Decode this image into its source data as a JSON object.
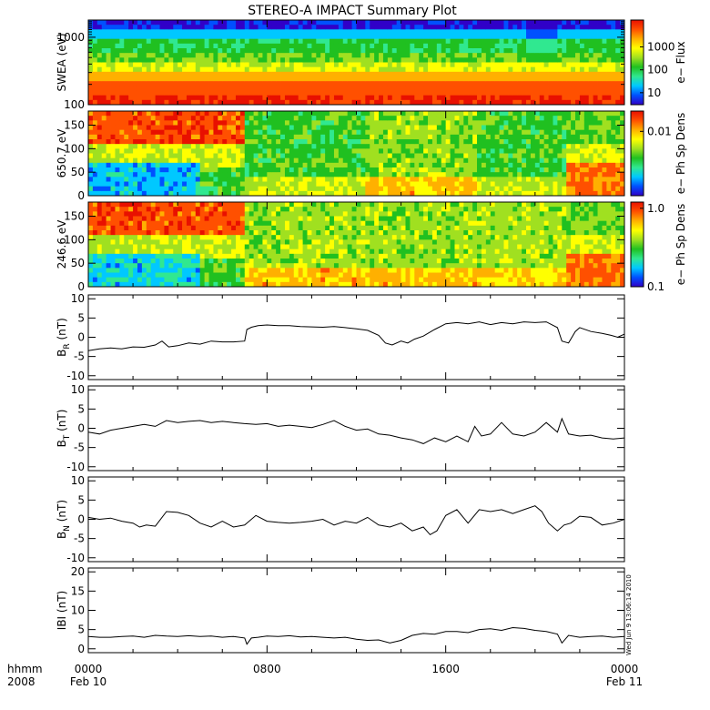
{
  "title": "STEREO-A IMPACT Summary Plot",
  "stamp": "Wed Jun  9 13:06:14 2010",
  "x_axis": {
    "row1_label": "hhmm",
    "row2_label": "2008",
    "ticks": [
      {
        "value": 0,
        "time": "0000",
        "date": "Feb 10"
      },
      {
        "value": 8,
        "time": "0800",
        "date": ""
      },
      {
        "value": 16,
        "time": "1600",
        "date": ""
      },
      {
        "value": 24,
        "time": "0000",
        "date": "Feb 11"
      }
    ],
    "range_hours": [
      0,
      24
    ]
  },
  "colors": {
    "line": "#000000",
    "colormap": [
      "#3000c8",
      "#0050ff",
      "#00c8ff",
      "#30e890",
      "#20c020",
      "#a0e020",
      "#ffff00",
      "#ffb000",
      "#ff5000",
      "#e81000"
    ]
  },
  "chart_data": [
    {
      "type": "heatmap",
      "ylabel": "SWEA (eV)",
      "yscale": "log",
      "ylim": [
        100,
        1800
      ],
      "yticks": [
        "100",
        "1000"
      ],
      "colorbar": {
        "label": "e− Flux",
        "scale": "log",
        "range": [
          3,
          15000
        ],
        "ticks": [
          "10",
          "100",
          "1000"
        ]
      },
      "description_rows": [
        {
          "energy_eV": 1700,
          "level": 0.05
        },
        {
          "energy_eV": 1300,
          "level": 0.2
        },
        {
          "energy_eV": 900,
          "level": 0.4
        },
        {
          "energy_eV": 600,
          "level": 0.5
        },
        {
          "energy_eV": 400,
          "level": 0.62
        },
        {
          "energy_eV": 250,
          "level": 0.75
        },
        {
          "energy_eV": 150,
          "level": 0.87
        },
        {
          "energy_eV": 100,
          "level": 0.95
        }
      ]
    },
    {
      "type": "heatmap",
      "ylabel": "650.7 eV",
      "yaxis_unit": "pitch angle (deg)",
      "ylim": [
        0,
        180
      ],
      "yticks": [
        "0",
        "50",
        "100",
        "150"
      ],
      "colorbar": {
        "label": "e− Ph Sp Dens",
        "scale": "log",
        "ticks": [
          "0.01"
        ]
      },
      "segments_hours": [
        {
          "from": 0,
          "to": 5.0,
          "pattern": "high-at-180"
        },
        {
          "from": 5.0,
          "to": 7.0,
          "pattern": "mid-at-180"
        },
        {
          "from": 7.0,
          "to": 12.5,
          "pattern": "isotropic-green"
        },
        {
          "from": 12.5,
          "to": 17.5,
          "pattern": "isotropic-yellow"
        },
        {
          "from": 17.5,
          "to": 21.5,
          "pattern": "isotropic-green"
        },
        {
          "from": 21.5,
          "to": 24,
          "pattern": "high-at-0"
        }
      ]
    },
    {
      "type": "heatmap",
      "ylabel": "246.6 eV",
      "yaxis_unit": "pitch angle (deg)",
      "ylim": [
        0,
        180
      ],
      "yticks": [
        "0",
        "50",
        "100",
        "150"
      ],
      "colorbar": {
        "label": "e− Ph Sp Dens",
        "scale": "log",
        "range": [
          0.1,
          1.2
        ],
        "ticks": [
          "0.1",
          "1.0"
        ]
      },
      "segments_hours": [
        {
          "from": 0,
          "to": 5.0,
          "pattern": "high-at-180"
        },
        {
          "from": 5.0,
          "to": 7.0,
          "pattern": "mid-at-180"
        },
        {
          "from": 7.0,
          "to": 12.5,
          "pattern": "isotropic-yellow"
        },
        {
          "from": 12.5,
          "to": 17.5,
          "pattern": "isotropic-yellow"
        },
        {
          "from": 17.5,
          "to": 21.5,
          "pattern": "isotropic-green"
        },
        {
          "from": 21.5,
          "to": 24,
          "pattern": "high-at-0"
        }
      ]
    },
    {
      "type": "line",
      "ylabel": "B",
      "ylabel_sub": "R",
      "ylabel_unit": "(nT)",
      "ylim": [
        -11,
        11
      ],
      "yticks": [
        -10,
        -5,
        0,
        5,
        10
      ],
      "x": [
        0,
        0.5,
        1,
        1.5,
        2,
        2.5,
        3,
        3.3,
        3.6,
        4,
        4.5,
        5,
        5.5,
        6,
        6.5,
        7,
        7.1,
        7.3,
        7.6,
        8,
        8.5,
        9,
        9.5,
        10,
        10.5,
        11,
        11.5,
        12,
        12.5,
        13,
        13.3,
        13.6,
        14,
        14.3,
        14.6,
        15,
        15.5,
        16,
        16.5,
        17,
        17.5,
        18,
        18.5,
        19,
        19.5,
        20,
        20.5,
        21,
        21.2,
        21.5,
        21.8,
        22,
        22.5,
        23,
        23.4,
        23.7,
        24
      ],
      "values": [
        -3.5,
        -3,
        -2.8,
        -3,
        -2.5,
        -2.6,
        -2,
        -1,
        -2.5,
        -2.2,
        -1.5,
        -1.8,
        -1,
        -1.2,
        -1.2,
        -1,
        2,
        2.6,
        3,
        3.2,
        3,
        3,
        2.8,
        2.7,
        2.6,
        2.8,
        2.5,
        2.2,
        1.8,
        0.5,
        -1.5,
        -2,
        -1,
        -1.5,
        -0.5,
        0.3,
        2,
        3.5,
        3.8,
        3.5,
        4,
        3.3,
        3.8,
        3.5,
        4,
        3.8,
        4,
        2.5,
        -1,
        -1.5,
        1.5,
        2.5,
        1.5,
        1,
        0.5,
        0,
        0.8
      ]
    },
    {
      "type": "line",
      "ylabel": "B",
      "ylabel_sub": "T",
      "ylabel_unit": "(nT)",
      "ylim": [
        -11,
        11
      ],
      "yticks": [
        -10,
        -5,
        0,
        5,
        10
      ],
      "x": [
        0,
        0.5,
        1,
        1.5,
        2,
        2.5,
        3,
        3.5,
        4,
        4.5,
        5,
        5.5,
        6,
        6.5,
        7,
        7.5,
        8,
        8.5,
        9,
        9.5,
        10,
        10.5,
        11,
        11.5,
        12,
        12.5,
        13,
        13.5,
        14,
        14.5,
        15,
        15.5,
        16,
        16.5,
        17,
        17.3,
        17.6,
        18,
        18.5,
        19,
        19.5,
        20,
        20.5,
        21,
        21.2,
        21.5,
        22,
        22.5,
        23,
        23.5,
        24
      ],
      "values": [
        -1,
        -1.5,
        -0.5,
        0,
        0.5,
        1,
        0.5,
        2,
        1.5,
        1.8,
        2,
        1.5,
        1.8,
        1.5,
        1.2,
        1,
        1.2,
        0.5,
        0.8,
        0.5,
        0.2,
        1,
        2,
        0.5,
        -0.5,
        -0.2,
        -1.5,
        -1.8,
        -2.5,
        -3,
        -4,
        -2.5,
        -3.5,
        -2,
        -3.5,
        0.5,
        -2,
        -1.5,
        1.5,
        -1.5,
        -2,
        -1,
        1.5,
        -1,
        2.5,
        -1.5,
        -2,
        -1.8,
        -2.5,
        -2.8,
        -2.5
      ]
    },
    {
      "type": "line",
      "ylabel": "B",
      "ylabel_sub": "N",
      "ylabel_unit": "(nT)",
      "ylim": [
        -11,
        11
      ],
      "yticks": [
        -10,
        -5,
        0,
        5,
        10
      ],
      "x": [
        0,
        0.5,
        1,
        1.5,
        2,
        2.3,
        2.6,
        3,
        3.5,
        4,
        4.5,
        5,
        5.5,
        6,
        6.5,
        7,
        7.5,
        8,
        8.5,
        9,
        9.5,
        10,
        10.5,
        11,
        11.5,
        12,
        12.5,
        13,
        13.5,
        14,
        14.5,
        15,
        15.3,
        15.6,
        16,
        16.5,
        17,
        17.5,
        18,
        18.5,
        19,
        19.5,
        20,
        20.3,
        20.6,
        21,
        21.3,
        21.6,
        22,
        22.5,
        23,
        23.5,
        24
      ],
      "values": [
        0.5,
        0,
        0.3,
        -0.5,
        -1,
        -2,
        -1.5,
        -1.8,
        2,
        1.8,
        1,
        -1,
        -2,
        -0.5,
        -2,
        -1.5,
        1,
        -0.5,
        -0.8,
        -1,
        -0.8,
        -0.5,
        0,
        -1.5,
        -0.5,
        -1,
        0.5,
        -1.5,
        -2,
        -1,
        -3,
        -2,
        -4,
        -3,
        1,
        2.5,
        -1,
        2.5,
        2,
        2.5,
        1.5,
        2.5,
        3.5,
        2,
        -1,
        -3,
        -1.5,
        -1,
        0.8,
        0.5,
        -1.5,
        -1,
        0
      ]
    },
    {
      "type": "line",
      "ylabel": "|B| (nT)",
      "ylabel_display": "IBI (nT)",
      "ylim": [
        -1,
        21
      ],
      "yticks": [
        0,
        5,
        10,
        15,
        20
      ],
      "x": [
        0,
        0.5,
        1,
        1.5,
        2,
        2.5,
        3,
        3.5,
        4,
        4.5,
        5,
        5.5,
        6,
        6.5,
        7,
        7.1,
        7.3,
        7.6,
        8,
        8.5,
        9,
        9.5,
        10,
        10.5,
        11,
        11.5,
        12,
        12.5,
        13,
        13.5,
        14,
        14.5,
        15,
        15.5,
        16,
        16.5,
        17,
        17.5,
        18,
        18.5,
        19,
        19.5,
        20,
        20.5,
        21,
        21.2,
        21.5,
        22,
        22.5,
        23,
        23.5,
        24
      ],
      "values": [
        3.2,
        3,
        3,
        3.2,
        3.3,
        3,
        3.5,
        3.3,
        3.2,
        3.4,
        3.2,
        3.3,
        3,
        3.2,
        2.8,
        1.2,
        2.8,
        3,
        3.3,
        3.2,
        3.4,
        3.1,
        3.2,
        3,
        2.8,
        3,
        2.5,
        2.2,
        2.3,
        1.5,
        2.2,
        3.5,
        4,
        3.8,
        4.5,
        4.5,
        4.2,
        5,
        5.2,
        4.8,
        5.5,
        5.3,
        4.8,
        4.5,
        3.8,
        1.5,
        3.5,
        3,
        3.2,
        3.3,
        3,
        3.2
      ]
    }
  ]
}
